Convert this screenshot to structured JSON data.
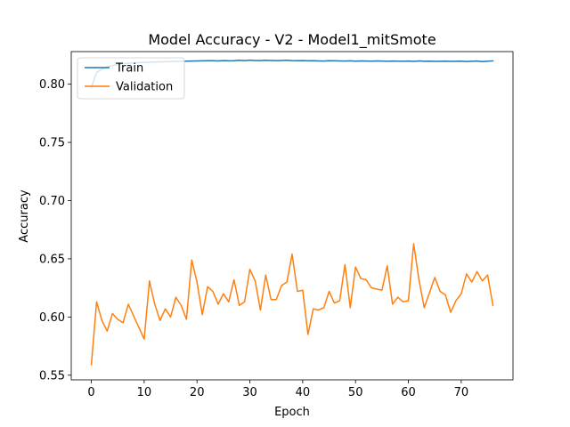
{
  "chart_data": {
    "type": "line",
    "title": "Model Accuracy - V2 - Model1_mitSmote",
    "xlabel": "Epoch",
    "ylabel": "Accuracy",
    "xlim": [
      -3.8,
      79.8
    ],
    "ylim": [
      0.546,
      0.828
    ],
    "xticks": [
      0,
      10,
      20,
      30,
      40,
      50,
      60,
      70
    ],
    "yticks": [
      0.55,
      0.6,
      0.65,
      0.7,
      0.75,
      0.8
    ],
    "ytick_labels": [
      "0.55",
      "0.60",
      "0.65",
      "0.70",
      "0.75",
      "0.80"
    ],
    "grid": false,
    "legend": {
      "position": "top-left"
    },
    "series": [
      {
        "name": "Train",
        "color": "#1f77b4",
        "values": [
          0.797,
          0.81,
          0.813,
          0.815,
          0.816,
          0.817,
          0.8175,
          0.818,
          0.8183,
          0.8185,
          0.8187,
          0.8189,
          0.819,
          0.8192,
          0.8193,
          0.8195,
          0.8196,
          0.8197,
          0.8198,
          0.8199,
          0.82,
          0.8201,
          0.8202,
          0.8202,
          0.82,
          0.8203,
          0.8201,
          0.8202,
          0.8205,
          0.8203,
          0.8206,
          0.8204,
          0.8203,
          0.8205,
          0.8204,
          0.8203,
          0.8204,
          0.8205,
          0.8203,
          0.8202,
          0.8203,
          0.8201,
          0.8202,
          0.82,
          0.8199,
          0.8202,
          0.8201,
          0.82,
          0.8199,
          0.8201,
          0.8198,
          0.82,
          0.8199,
          0.8198,
          0.82,
          0.8199,
          0.8197,
          0.8199,
          0.8198,
          0.8197,
          0.8199,
          0.8196,
          0.82,
          0.8197,
          0.8198,
          0.8196,
          0.8197,
          0.8198,
          0.8196,
          0.8197,
          0.8198,
          0.8195,
          0.8197,
          0.8199,
          0.8194,
          0.8198,
          0.82
        ]
      },
      {
        "name": "Validation",
        "color": "#ff7f0e",
        "values": [
          0.559,
          0.613,
          0.597,
          0.588,
          0.603,
          0.598,
          0.595,
          0.611,
          0.601,
          0.591,
          0.581,
          0.631,
          0.611,
          0.597,
          0.607,
          0.6,
          0.617,
          0.61,
          0.598,
          0.649,
          0.63,
          0.602,
          0.626,
          0.622,
          0.611,
          0.62,
          0.613,
          0.632,
          0.61,
          0.613,
          0.641,
          0.631,
          0.606,
          0.636,
          0.615,
          0.615,
          0.627,
          0.63,
          0.654,
          0.622,
          0.623,
          0.585,
          0.607,
          0.606,
          0.608,
          0.622,
          0.612,
          0.614,
          0.645,
          0.608,
          0.643,
          0.633,
          0.632,
          0.625,
          0.624,
          0.623,
          0.644,
          0.611,
          0.617,
          0.613,
          0.614,
          0.663,
          0.632,
          0.608,
          0.621,
          0.634,
          0.622,
          0.619,
          0.604,
          0.614,
          0.62,
          0.637,
          0.63,
          0.639,
          0.631,
          0.636,
          0.61
        ]
      }
    ]
  }
}
